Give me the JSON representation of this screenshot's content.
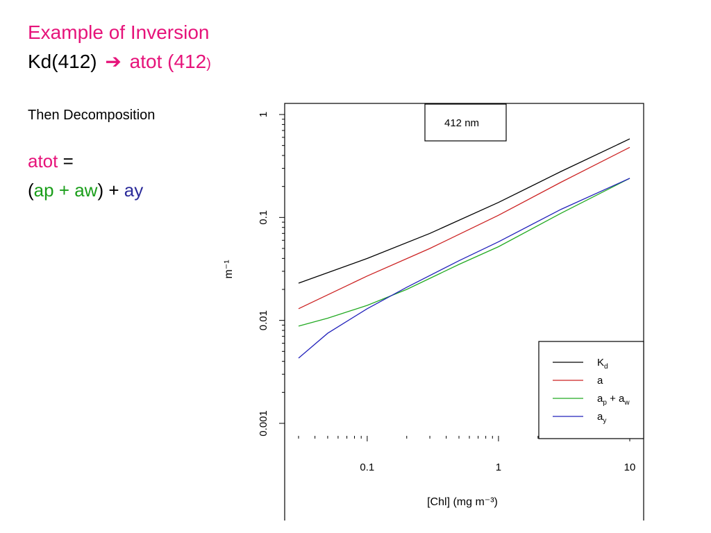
{
  "slide": {
    "title_line1": "Example of Inversion",
    "title_line2_left": "Kd(412)",
    "arrow_glyph": "➔",
    "title_line2_right": "atot (412",
    "title_line2_paren": ")",
    "subtitle": "Then Decomposition",
    "eq_atot": "atot",
    "eq_equals": " =",
    "eq_open": "(",
    "eq_ap_aw": "ap + aw",
    "eq_close_plus": ") + ",
    "eq_ay": "ay"
  },
  "colors": {
    "title_pink": "#e6137a",
    "green": "#1a9e1a",
    "blue": "#2b2b9a",
    "kd_line": "#000000",
    "a_line": "#cc2222",
    "apaw_line": "#22aa22",
    "ay_line": "#2222bb"
  },
  "chart_data": {
    "type": "line",
    "x_scale": "log",
    "y_scale": "log",
    "xlim": [
      0.03,
      10
    ],
    "ylim": [
      0.001,
      1
    ],
    "x_ticks": [
      0.1,
      1,
      10
    ],
    "x_tick_labels": [
      "0.1",
      "1",
      "10"
    ],
    "y_ticks": [
      1,
      0.1,
      0.01,
      0.001
    ],
    "y_tick_labels": [
      "1",
      "0.1",
      "0.01",
      "0.001"
    ],
    "xlabel": "[Chl] (mg  m⁻³)",
    "ylabel": "m⁻¹",
    "annotation": "412 nm",
    "legend_position": "bottom-right",
    "series": [
      {
        "name": "Kd",
        "label_main": "K",
        "label_sub": "d",
        "color": "#000000",
        "x": [
          0.03,
          0.1,
          0.3,
          1,
          3,
          10
        ],
        "y": [
          0.023,
          0.04,
          0.07,
          0.14,
          0.28,
          0.58
        ]
      },
      {
        "name": "a",
        "label_main": "a",
        "label_sub": "",
        "color": "#cc2222",
        "x": [
          0.03,
          0.1,
          0.3,
          1,
          3,
          10
        ],
        "y": [
          0.013,
          0.027,
          0.05,
          0.105,
          0.22,
          0.48
        ]
      },
      {
        "name": "ap + aw",
        "label_main": "a",
        "label_sub": "p",
        "label_mid": " + a",
        "label_sub2": "w",
        "color": "#22aa22",
        "x": [
          0.03,
          0.05,
          0.1,
          0.2,
          0.5,
          1,
          3,
          10
        ],
        "y": [
          0.0088,
          0.0105,
          0.014,
          0.02,
          0.035,
          0.052,
          0.11,
          0.24
        ]
      },
      {
        "name": "ay",
        "label_main": "a",
        "label_sub": "y",
        "color": "#2222bb",
        "x": [
          0.03,
          0.05,
          0.1,
          0.2,
          0.5,
          1,
          3,
          10
        ],
        "y": [
          0.0043,
          0.0075,
          0.013,
          0.021,
          0.038,
          0.058,
          0.12,
          0.24
        ]
      }
    ]
  }
}
